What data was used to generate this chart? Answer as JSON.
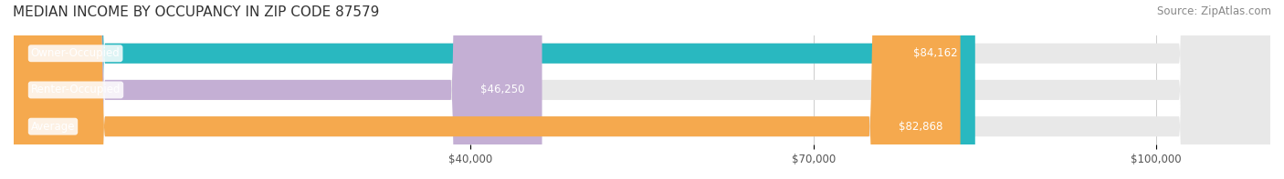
{
  "title": "MEDIAN INCOME BY OCCUPANCY IN ZIP CODE 87579",
  "source": "Source: ZipAtlas.com",
  "categories": [
    "Owner-Occupied",
    "Renter-Occupied",
    "Average"
  ],
  "values": [
    84162,
    46250,
    82868
  ],
  "labels": [
    "$84,162",
    "$46,250",
    "$82,868"
  ],
  "bar_colors": [
    "#29b8c0",
    "#c4afd4",
    "#f5a94e"
  ],
  "bar_bg_color": "#e8e8e8",
  "xmax": 110000,
  "xticks": [
    40000,
    70000,
    100000
  ],
  "xtick_labels": [
    "$40,000",
    "$70,000",
    "$100,000"
  ],
  "title_fontsize": 11,
  "source_fontsize": 8.5,
  "label_fontsize": 8.5,
  "cat_fontsize": 8.5,
  "bar_height": 0.55,
  "figsize": [
    14.06,
    1.97
  ],
  "dpi": 100
}
